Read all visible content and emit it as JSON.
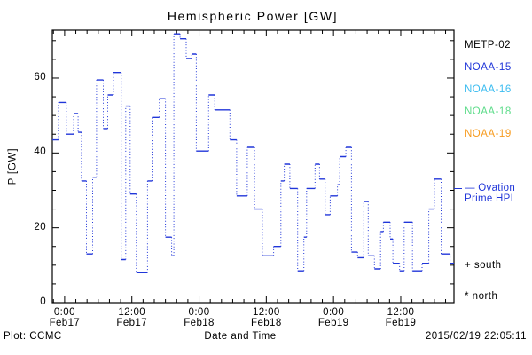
{
  "footer": {
    "left": "Plot: CCMC",
    "timestamp": "2015/02/19 22:05:11"
  },
  "legend": {
    "satellites": [
      {
        "label": "METP-02",
        "color": "#000000"
      },
      {
        "label": "NOAA-15",
        "color": "#2036d9"
      },
      {
        "label": "NOAA-16",
        "color": "#3bbcf0"
      },
      {
        "label": "NOAA-18",
        "color": "#5ddc8a"
      },
      {
        "label": "NOAA-19",
        "color": "#f79b1e"
      }
    ],
    "ovation_line1": "— Ovation",
    "ovation_line2": "Prime HPI",
    "ovation_color": "#2036d9",
    "south_marker": "+ south",
    "north_marker": "* north"
  },
  "chart_data": {
    "type": "line",
    "subtype": "step-histogram-dotted",
    "title": "Hemispheric Power [GW]",
    "xlabel": "Date and Time",
    "ylabel": "P [GW]",
    "axis": {
      "t_min": -2.2,
      "t_max": 69.5,
      "y_min": 0,
      "y_max": 72.8,
      "t_unit": "hours since 2015-02-17 00:00",
      "grid": false
    },
    "minor_x": 2,
    "minor_y": 5,
    "y_ticks": [
      0,
      20,
      40,
      60
    ],
    "x_ticks": [
      {
        "t": 0,
        "time": "0:00",
        "date": "Feb17"
      },
      {
        "t": 12,
        "time": "12:00",
        "date": "Feb17"
      },
      {
        "t": 24,
        "time": "0:00",
        "date": "Feb18"
      },
      {
        "t": 36,
        "time": "12:00",
        "date": "Feb18"
      },
      {
        "t": 48,
        "time": "0:00",
        "date": "Feb19"
      },
      {
        "t": 60,
        "time": "12:00",
        "date": "Feb19"
      }
    ],
    "series": [
      {
        "name": "Ovation Prime HPI",
        "color": "#2036d9",
        "points": [
          {
            "t": -2.2,
            "v": 43.5
          },
          {
            "t": -1.1,
            "v": 53.5
          },
          {
            "t": 0.3,
            "v": 45.0
          },
          {
            "t": 1.6,
            "v": 50.5
          },
          {
            "t": 2.4,
            "v": 45.5
          },
          {
            "t": 3.0,
            "v": 32.5
          },
          {
            "t": 3.9,
            "v": 13.0
          },
          {
            "t": 5.0,
            "v": 33.5
          },
          {
            "t": 5.7,
            "v": 59.5
          },
          {
            "t": 6.9,
            "v": 46.5
          },
          {
            "t": 7.7,
            "v": 55.5
          },
          {
            "t": 8.7,
            "v": 61.5
          },
          {
            "t": 10.1,
            "v": 11.5
          },
          {
            "t": 10.9,
            "v": 52.5
          },
          {
            "t": 11.7,
            "v": 29.0
          },
          {
            "t": 12.8,
            "v": 8.0
          },
          {
            "t": 14.8,
            "v": 32.5
          },
          {
            "t": 15.6,
            "v": 49.5
          },
          {
            "t": 16.9,
            "v": 54.5
          },
          {
            "t": 18.0,
            "v": 17.5
          },
          {
            "t": 19.1,
            "v": 12.5
          },
          {
            "t": 19.5,
            "v": 71.8
          },
          {
            "t": 20.6,
            "v": 70.5
          },
          {
            "t": 21.7,
            "v": 65.2
          },
          {
            "t": 22.7,
            "v": 66.4
          },
          {
            "t": 23.5,
            "v": 40.5
          },
          {
            "t": 25.7,
            "v": 55.5
          },
          {
            "t": 26.8,
            "v": 51.5
          },
          {
            "t": 29.5,
            "v": 43.5
          },
          {
            "t": 30.7,
            "v": 28.5
          },
          {
            "t": 32.6,
            "v": 41.5
          },
          {
            "t": 33.9,
            "v": 25.0
          },
          {
            "t": 35.3,
            "v": 12.5
          },
          {
            "t": 37.3,
            "v": 15.0
          },
          {
            "t": 38.6,
            "v": 32.5
          },
          {
            "t": 39.2,
            "v": 37.0
          },
          {
            "t": 40.2,
            "v": 30.5
          },
          {
            "t": 41.6,
            "v": 8.5
          },
          {
            "t": 42.7,
            "v": 17.5
          },
          {
            "t": 43.2,
            "v": 30.5
          },
          {
            "t": 44.7,
            "v": 37.0
          },
          {
            "t": 45.5,
            "v": 33.0
          },
          {
            "t": 46.5,
            "v": 23.5
          },
          {
            "t": 47.4,
            "v": 28.5
          },
          {
            "t": 48.7,
            "v": 31.5
          },
          {
            "t": 49.1,
            "v": 39.0
          },
          {
            "t": 50.2,
            "v": 41.5
          },
          {
            "t": 51.2,
            "v": 13.5
          },
          {
            "t": 52.3,
            "v": 12.0
          },
          {
            "t": 53.4,
            "v": 27.0
          },
          {
            "t": 54.2,
            "v": 12.5
          },
          {
            "t": 55.3,
            "v": 9.0
          },
          {
            "t": 56.4,
            "v": 19.0
          },
          {
            "t": 56.9,
            "v": 21.5
          },
          {
            "t": 58.1,
            "v": 17.0
          },
          {
            "t": 58.6,
            "v": 10.5
          },
          {
            "t": 59.8,
            "v": 8.5
          },
          {
            "t": 60.6,
            "v": 21.5
          },
          {
            "t": 62.1,
            "v": 8.5
          },
          {
            "t": 63.8,
            "v": 10.5
          },
          {
            "t": 65.0,
            "v": 25.0
          },
          {
            "t": 66.0,
            "v": 33.0
          },
          {
            "t": 67.2,
            "v": 13.0
          },
          {
            "t": 68.8,
            "v": 10.5
          }
        ]
      }
    ]
  }
}
